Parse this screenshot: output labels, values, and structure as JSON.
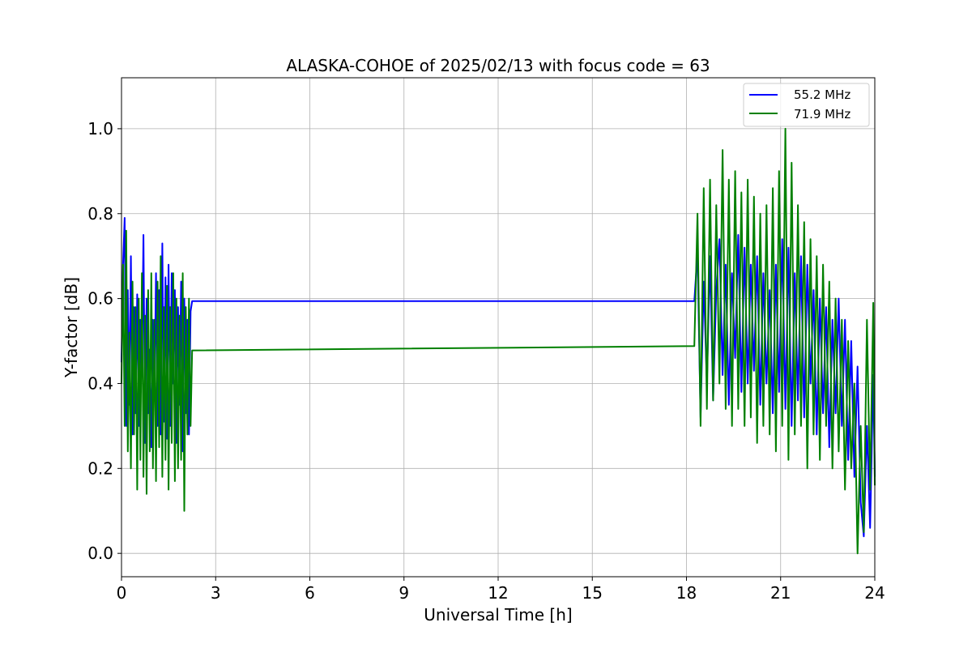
{
  "chart_data": {
    "type": "line",
    "title": "ALASKA-COHOE of 2025/02/13 with focus code = 63",
    "xlabel": "Universal Time [h]",
    "ylabel": "Y-factor [dB]",
    "xlim": [
      0,
      24
    ],
    "ylim": [
      -0.055,
      1.12
    ],
    "xticks": [
      0,
      3,
      6,
      9,
      12,
      15,
      18,
      21,
      24
    ],
    "xtick_labels": [
      "0",
      "3",
      "6",
      "9",
      "12",
      "15",
      "18",
      "21",
      "24"
    ],
    "yticks": [
      0.0,
      0.2,
      0.4,
      0.6,
      0.8,
      1.0
    ],
    "ytick_labels": [
      "0.0",
      "0.2",
      "0.4",
      "0.6",
      "0.8",
      "1.0"
    ],
    "grid": true,
    "legend_position": "top-right",
    "series": [
      {
        "name": "55.2 MHz",
        "color": "#0000ff",
        "x": [
          0.0,
          0.05,
          0.1,
          0.15,
          0.2,
          0.25,
          0.3,
          0.35,
          0.4,
          0.45,
          0.5,
          0.55,
          0.6,
          0.65,
          0.7,
          0.75,
          0.8,
          0.85,
          0.9,
          0.95,
          1.0,
          1.05,
          1.1,
          1.15,
          1.2,
          1.25,
          1.3,
          1.35,
          1.4,
          1.45,
          1.5,
          1.55,
          1.6,
          1.65,
          1.7,
          1.75,
          1.8,
          1.85,
          1.9,
          1.95,
          2.0,
          2.05,
          2.1,
          2.15,
          2.2,
          2.25,
          18.25,
          18.35,
          18.45,
          18.55,
          18.65,
          18.75,
          18.85,
          18.95,
          19.05,
          19.15,
          19.25,
          19.35,
          19.45,
          19.55,
          19.65,
          19.75,
          19.85,
          19.95,
          20.05,
          20.15,
          20.25,
          20.35,
          20.45,
          20.55,
          20.65,
          20.75,
          20.85,
          20.95,
          21.05,
          21.15,
          21.25,
          21.35,
          21.45,
          21.55,
          21.65,
          21.75,
          21.85,
          21.95,
          22.05,
          22.15,
          22.25,
          22.35,
          22.45,
          22.55,
          22.65,
          22.75,
          22.85,
          22.95,
          23.05,
          23.15,
          23.25,
          23.35,
          23.45,
          23.55,
          23.65,
          23.75,
          23.85,
          23.95,
          24.0
        ],
        "y": [
          0.45,
          0.68,
          0.79,
          0.3,
          0.62,
          0.35,
          0.7,
          0.28,
          0.58,
          0.33,
          0.61,
          0.3,
          0.55,
          0.42,
          0.75,
          0.26,
          0.6,
          0.33,
          0.48,
          0.25,
          0.55,
          0.37,
          0.66,
          0.3,
          0.62,
          0.28,
          0.73,
          0.31,
          0.65,
          0.27,
          0.68,
          0.3,
          0.66,
          0.4,
          0.62,
          0.26,
          0.58,
          0.35,
          0.64,
          0.24,
          0.6,
          0.33,
          0.55,
          0.28,
          0.57,
          0.594,
          0.594,
          0.71,
          0.32,
          0.64,
          0.4,
          0.7,
          0.36,
          0.62,
          0.74,
          0.42,
          0.68,
          0.35,
          0.66,
          0.46,
          0.75,
          0.38,
          0.72,
          0.4,
          0.68,
          0.43,
          0.7,
          0.35,
          0.66,
          0.4,
          0.62,
          0.33,
          0.68,
          0.38,
          0.74,
          0.34,
          0.72,
          0.3,
          0.66,
          0.36,
          0.7,
          0.32,
          0.68,
          0.4,
          0.62,
          0.28,
          0.6,
          0.33,
          0.58,
          0.25,
          0.55,
          0.33,
          0.6,
          0.3,
          0.55,
          0.22,
          0.5,
          0.18,
          0.44,
          0.12,
          0.04,
          0.3,
          0.06,
          0.42,
          0.18
        ]
      },
      {
        "name": "71.9 MHz",
        "color": "#008000",
        "x": [
          0.0,
          0.05,
          0.1,
          0.15,
          0.2,
          0.25,
          0.3,
          0.35,
          0.4,
          0.45,
          0.5,
          0.55,
          0.6,
          0.65,
          0.7,
          0.75,
          0.8,
          0.85,
          0.9,
          0.95,
          1.0,
          1.05,
          1.1,
          1.15,
          1.2,
          1.25,
          1.3,
          1.35,
          1.4,
          1.45,
          1.5,
          1.55,
          1.6,
          1.65,
          1.7,
          1.75,
          1.8,
          1.85,
          1.9,
          1.95,
          2.0,
          2.05,
          2.1,
          2.15,
          2.2,
          2.25,
          18.25,
          18.35,
          18.45,
          18.55,
          18.65,
          18.75,
          18.85,
          18.95,
          19.05,
          19.15,
          19.25,
          19.35,
          19.45,
          19.55,
          19.65,
          19.75,
          19.85,
          19.95,
          20.05,
          20.15,
          20.25,
          20.35,
          20.45,
          20.55,
          20.65,
          20.75,
          20.85,
          20.95,
          21.05,
          21.15,
          21.25,
          21.35,
          21.45,
          21.55,
          21.65,
          21.75,
          21.85,
          21.95,
          22.05,
          22.15,
          22.25,
          22.35,
          22.45,
          22.55,
          22.65,
          22.75,
          22.85,
          22.95,
          23.05,
          23.15,
          23.25,
          23.35,
          23.45,
          23.55,
          23.65,
          23.75,
          23.85,
          23.95,
          24.0
        ],
        "y": [
          0.4,
          0.68,
          0.3,
          0.76,
          0.24,
          0.52,
          0.2,
          0.64,
          0.28,
          0.58,
          0.15,
          0.6,
          0.22,
          0.66,
          0.18,
          0.56,
          0.14,
          0.62,
          0.24,
          0.66,
          0.2,
          0.55,
          0.17,
          0.64,
          0.25,
          0.7,
          0.18,
          0.58,
          0.22,
          0.63,
          0.15,
          0.58,
          0.26,
          0.66,
          0.17,
          0.6,
          0.2,
          0.56,
          0.22,
          0.66,
          0.1,
          0.58,
          0.28,
          0.6,
          0.3,
          0.478,
          0.488,
          0.8,
          0.3,
          0.86,
          0.34,
          0.88,
          0.36,
          0.82,
          0.4,
          0.95,
          0.34,
          0.88,
          0.3,
          0.9,
          0.34,
          0.85,
          0.3,
          0.88,
          0.32,
          0.84,
          0.26,
          0.8,
          0.3,
          0.82,
          0.28,
          0.86,
          0.24,
          0.9,
          0.3,
          1.0,
          0.22,
          0.92,
          0.28,
          0.82,
          0.3,
          0.78,
          0.2,
          0.74,
          0.28,
          0.7,
          0.22,
          0.68,
          0.3,
          0.64,
          0.2,
          0.6,
          0.24,
          0.55,
          0.15,
          0.5,
          0.2,
          0.4,
          0.0,
          0.3,
          0.05,
          0.55,
          0.15,
          0.59,
          0.16
        ]
      }
    ]
  }
}
